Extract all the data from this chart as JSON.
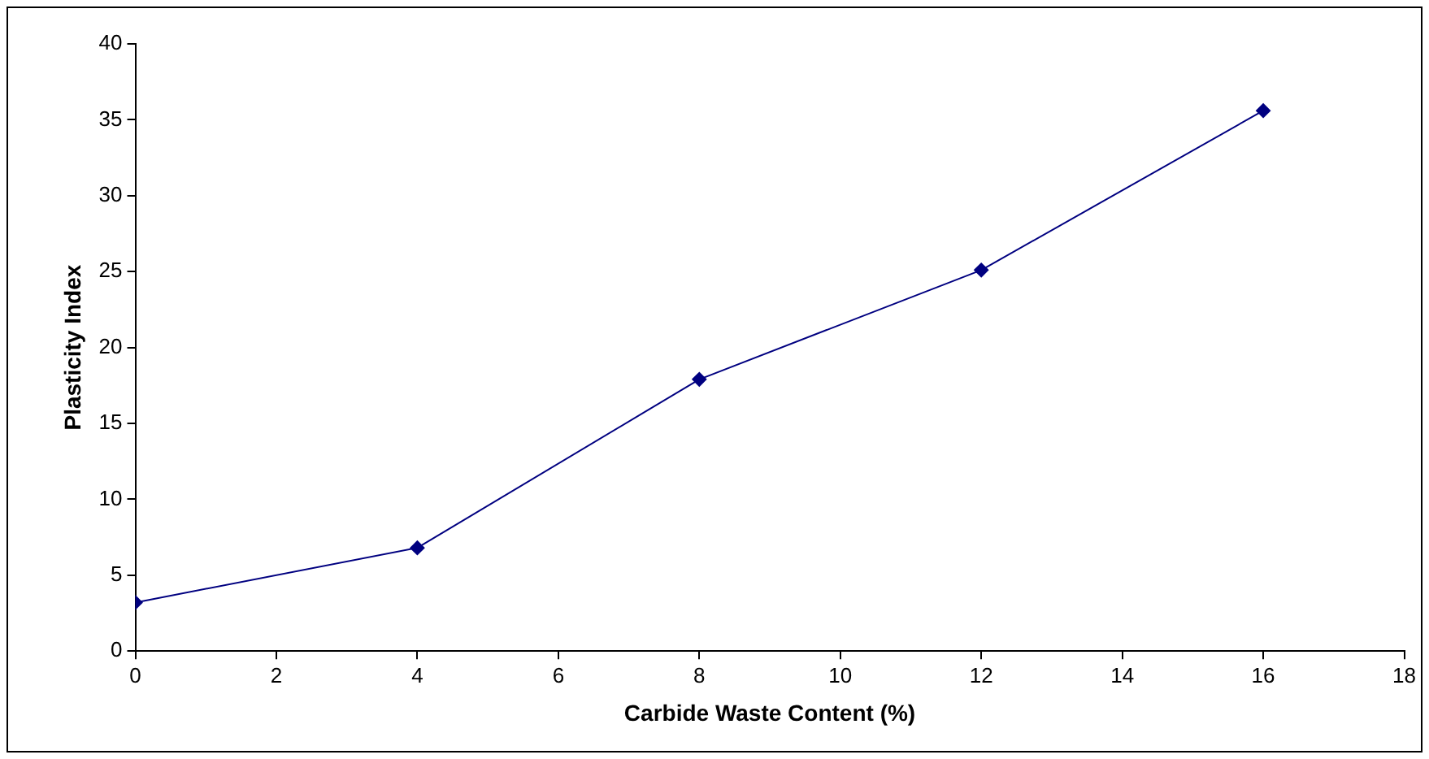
{
  "chart_data": {
    "type": "line",
    "xlabel": "Carbide Waste Content (%)",
    "ylabel": "Plasticity Index",
    "x": [
      0,
      4,
      8,
      12,
      16
    ],
    "series": [
      {
        "color": "#000080",
        "values": [
          3.2,
          6.8,
          17.9,
          25.1,
          35.6
        ]
      }
    ],
    "xlim": [
      0,
      18
    ],
    "xticks": [
      0,
      2,
      4,
      6,
      8,
      10,
      12,
      14,
      16,
      18
    ],
    "ylim": [
      0,
      40
    ],
    "yticks": [
      0,
      5,
      10,
      15,
      20,
      25,
      30,
      35,
      40
    ],
    "grid": false,
    "legend": false,
    "marker": "diamond",
    "line_style": "solid"
  }
}
